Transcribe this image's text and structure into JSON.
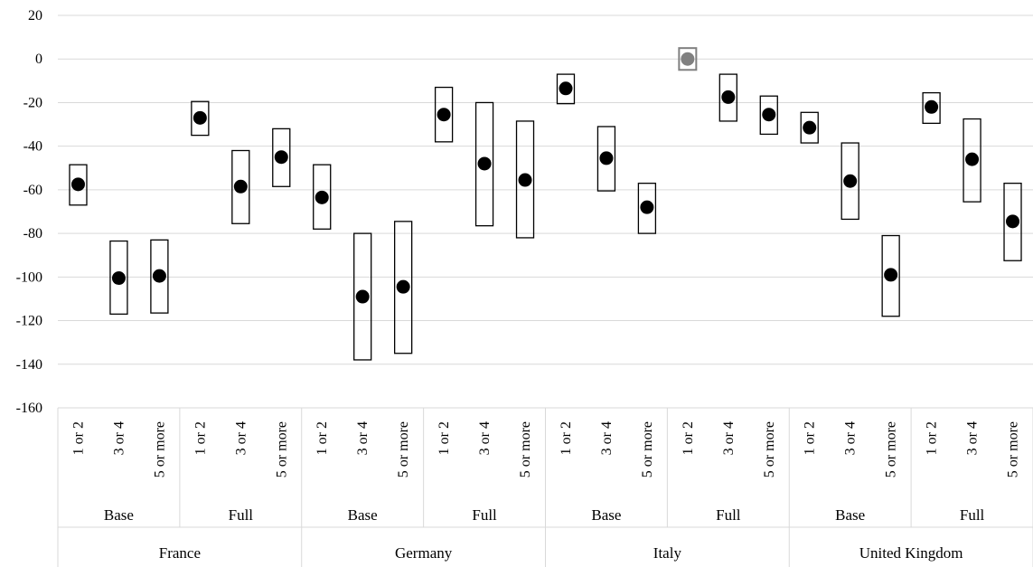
{
  "chart_data": {
    "type": "scatter",
    "title": "",
    "xlabel": "",
    "ylabel": "",
    "ylim": [
      -160,
      20
    ],
    "y_ticks": [
      20,
      0,
      -20,
      -40,
      -60,
      -80,
      -100,
      -120,
      -140,
      -160
    ],
    "y_tick_labels": [
      "20",
      "0",
      "-20",
      "-40",
      "-60",
      "-80",
      "-100",
      "-120",
      "-140",
      "-160"
    ],
    "grid": true,
    "legend": "none",
    "countries": [
      "France",
      "Germany",
      "Italy",
      "United Kingdom"
    ],
    "models": [
      "Base",
      "Full"
    ],
    "categories": [
      "1 or 2",
      "3 or 4",
      "5 or more"
    ],
    "colors": {
      "point": "#000000",
      "reference_point": "#808080",
      "box": "#000000",
      "grid": "#d9d9d9"
    },
    "points": [
      {
        "country": "France",
        "model": "Base",
        "category": "1 or 2",
        "value": -57.5,
        "low": -67,
        "high": -48.5
      },
      {
        "country": "France",
        "model": "Base",
        "category": "3 or 4",
        "value": -100.5,
        "low": -117,
        "high": -83.5
      },
      {
        "country": "France",
        "model": "Base",
        "category": "5 or more",
        "value": -99.5,
        "low": -116.5,
        "high": -83
      },
      {
        "country": "France",
        "model": "Full",
        "category": "1 or 2",
        "value": -27,
        "low": -35,
        "high": -19.5
      },
      {
        "country": "France",
        "model": "Full",
        "category": "3 or 4",
        "value": -58.5,
        "low": -75.5,
        "high": -42
      },
      {
        "country": "France",
        "model": "Full",
        "category": "5 or more",
        "value": -45,
        "low": -58.5,
        "high": -32
      },
      {
        "country": "Germany",
        "model": "Base",
        "category": "1 or 2",
        "value": -63.5,
        "low": -78,
        "high": -48.5
      },
      {
        "country": "Germany",
        "model": "Base",
        "category": "3 or 4",
        "value": -109,
        "low": -138,
        "high": -80
      },
      {
        "country": "Germany",
        "model": "Base",
        "category": "5 or more",
        "value": -104.5,
        "low": -135,
        "high": -74.5
      },
      {
        "country": "Germany",
        "model": "Full",
        "category": "1 or 2",
        "value": -25.5,
        "low": -38,
        "high": -13
      },
      {
        "country": "Germany",
        "model": "Full",
        "category": "3 or 4",
        "value": -48,
        "low": -76.5,
        "high": -20
      },
      {
        "country": "Germany",
        "model": "Full",
        "category": "5 or more",
        "value": -55.5,
        "low": -82,
        "high": -28.5
      },
      {
        "country": "Italy",
        "model": "Base",
        "category": "1 or 2",
        "value": -13.5,
        "low": -20.5,
        "high": -7
      },
      {
        "country": "Italy",
        "model": "Base",
        "category": "3 or 4",
        "value": -45.5,
        "low": -60.5,
        "high": -31
      },
      {
        "country": "Italy",
        "model": "Base",
        "category": "5 or more",
        "value": -68,
        "low": -80,
        "high": -57
      },
      {
        "country": "Italy",
        "model": "Full",
        "category": "1 or 2",
        "value": 0,
        "low": -5,
        "high": 5,
        "reference": true
      },
      {
        "country": "Italy",
        "model": "Full",
        "category": "3 or 4",
        "value": -17.5,
        "low": -28.5,
        "high": -7
      },
      {
        "country": "Italy",
        "model": "Full",
        "category": "5 or more",
        "value": -25.5,
        "low": -34.5,
        "high": -17
      },
      {
        "country": "United Kingdom",
        "model": "Base",
        "category": "1 or 2",
        "value": -31.5,
        "low": -38.5,
        "high": -24.5
      },
      {
        "country": "United Kingdom",
        "model": "Base",
        "category": "3 or 4",
        "value": -56,
        "low": -73.5,
        "high": -38.5
      },
      {
        "country": "United Kingdom",
        "model": "Base",
        "category": "5 or more",
        "value": -99,
        "low": -118,
        "high": -81
      },
      {
        "country": "United Kingdom",
        "model": "Full",
        "category": "1 or 2",
        "value": -22,
        "low": -29.5,
        "high": -15.5
      },
      {
        "country": "United Kingdom",
        "model": "Full",
        "category": "3 or 4",
        "value": -46,
        "low": -65.5,
        "high": -27.5
      },
      {
        "country": "United Kingdom",
        "model": "Full",
        "category": "5 or more",
        "value": -74.5,
        "low": -92.5,
        "high": -57
      }
    ]
  }
}
